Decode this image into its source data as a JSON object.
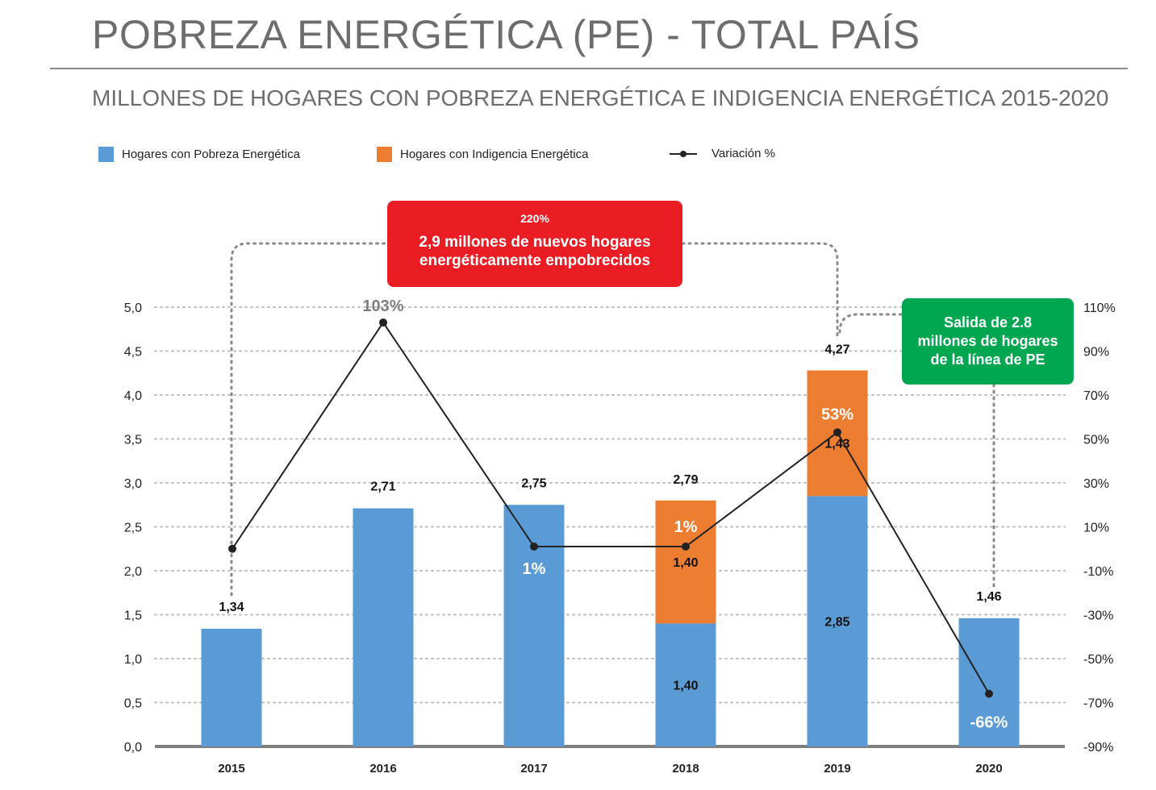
{
  "header": {
    "title": "POBREZA ENERGÉTICA (PE) - TOTAL PAÍS",
    "subtitle": "MILLONES DE HOGARES CON POBREZA ENERGÉTICA E INDIGENCIA ENERGÉTICA 2015-2020"
  },
  "legend": {
    "pobreza": "Hogares con Pobreza Energética",
    "indigencia": "Hogares con Indigencia Energética",
    "variacion": "Variación %"
  },
  "callouts": {
    "red_pct": "220%",
    "red_text_1": "2,9 millones de nuevos hogares",
    "red_text_2": "energéticamente empobrecidos",
    "green_text_1": "Salida de 2.8",
    "green_text_2": "millones de hogares",
    "green_text_3": "de la línea de PE"
  },
  "colors": {
    "pobreza": "#5b9bd5",
    "indigencia": "#ed7d31",
    "line": "#222222",
    "red_callout": "#ea1d25",
    "green_callout": "#00a650"
  },
  "chart_data": {
    "type": "bar",
    "categories": [
      "2015",
      "2016",
      "2017",
      "2018",
      "2019",
      "2020"
    ],
    "series": [
      {
        "name": "Hogares con Pobreza Energética",
        "values": [
          1.34,
          2.71,
          2.75,
          1.4,
          2.85,
          1.46
        ]
      },
      {
        "name": "Hogares con Indigencia Energética",
        "values": [
          0,
          0,
          0,
          1.4,
          1.43,
          0
        ]
      }
    ],
    "totals": [
      1.34,
      2.71,
      2.75,
      2.79,
      4.27,
      1.46
    ],
    "total_labels": [
      "1,34",
      "2,71",
      "2,75",
      "2,79",
      "4,27",
      "1,46"
    ],
    "segment_labels": {
      "pobreza": [
        "",
        "",
        "",
        "1,40",
        "2,85",
        ""
      ],
      "indigencia": [
        "",
        "",
        "",
        "1,40",
        "1,43",
        ""
      ]
    },
    "variation": {
      "name": "Variación %",
      "values": [
        0,
        103,
        1,
        1,
        53,
        -66
      ],
      "labels": [
        "",
        "103%",
        "1%",
        "1%",
        "53%",
        "-66%"
      ]
    },
    "y_left": {
      "min": 0,
      "max": 5,
      "ticks": [
        "0,0",
        "0,5",
        "1,0",
        "1,5",
        "2,0",
        "2,5",
        "3,0",
        "3,5",
        "4,0",
        "4,5",
        "5,0"
      ]
    },
    "y_right": {
      "min": -90,
      "max": 110,
      "ticks": [
        "-90%",
        "-70%",
        "-50%",
        "-30%",
        "-10%",
        "10%",
        "30%",
        "50%",
        "70%",
        "90%",
        "110%"
      ]
    },
    "grid": true,
    "legend_position": "top-left"
  }
}
